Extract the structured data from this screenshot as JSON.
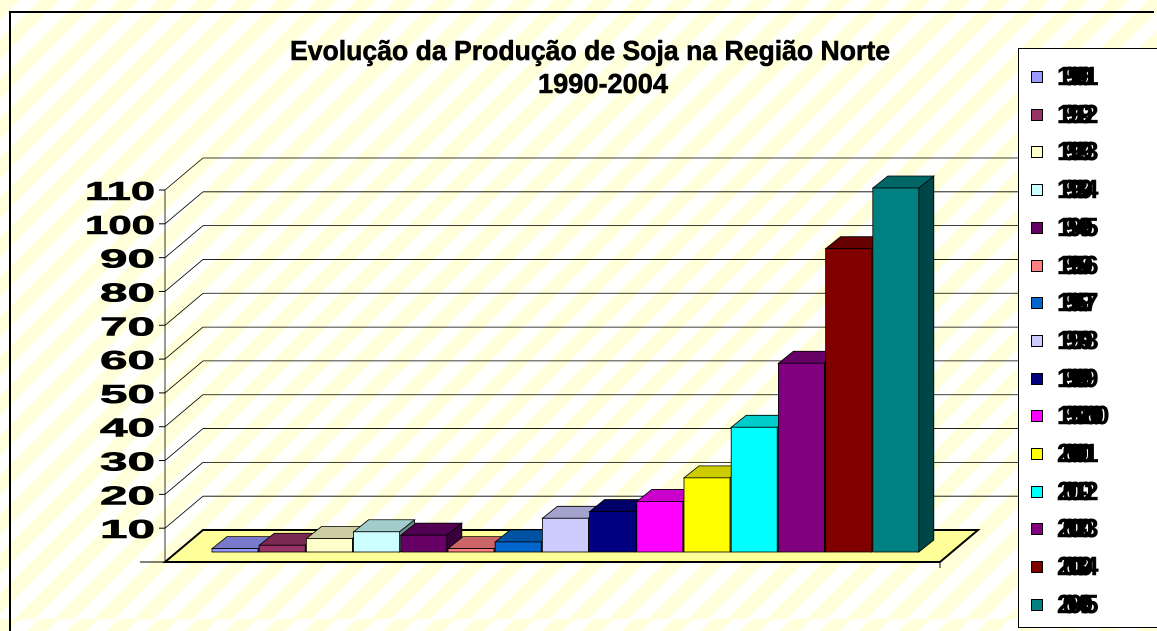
{
  "chart_data": {
    "type": "bar",
    "title": "Evolução da Produção de Soja na Região Norte",
    "subtitle": "1990-2004",
    "categories": [
      "1990-91",
      "1991-92",
      "1992-93",
      "1993-94",
      "1994-95",
      "1995-96",
      "1996-97",
      "1997-98",
      "1998-99",
      "1999-2000",
      "2000-01",
      "2001-02",
      "2002-03",
      "2003-04",
      "2004-05"
    ],
    "values": [
      1,
      2,
      4,
      6,
      5,
      1,
      3,
      10,
      12,
      15,
      22,
      37,
      56,
      90,
      108
    ],
    "ylim": [
      0,
      110
    ],
    "yticks": [
      "10",
      "20",
      "30",
      "40",
      "50",
      "60",
      "70",
      "80",
      "90",
      "100",
      "110"
    ],
    "colors": [
      "#9999ff",
      "#993366",
      "#ffffcc",
      "#ccffff",
      "#660066",
      "#ff8080",
      "#0066cc",
      "#ccccff",
      "#000080",
      "#ff00ff",
      "#ffff00",
      "#00ffff",
      "#800080",
      "#800000",
      "#008080"
    ],
    "grid": true,
    "legend_position": "right",
    "three_d": true
  }
}
